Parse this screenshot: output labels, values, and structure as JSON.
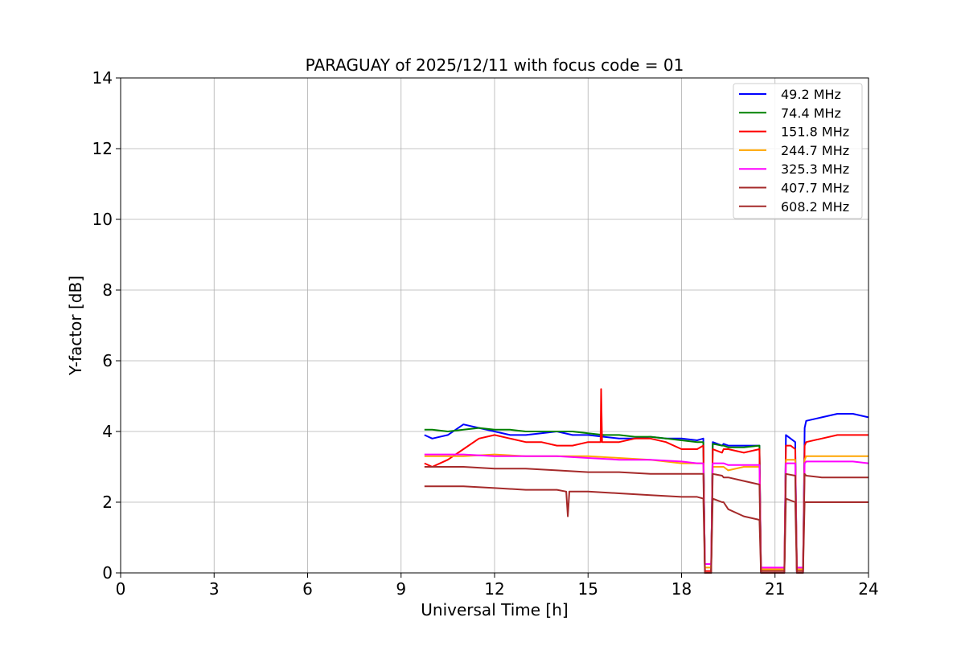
{
  "chart_data": {
    "type": "line",
    "title": "PARAGUAY of 2025/12/11 with focus code = 01",
    "xlabel": "Universal Time [h]",
    "ylabel": "Y-factor [dB]",
    "xlim": [
      0,
      24
    ],
    "ylim": [
      0,
      14
    ],
    "xticks": [
      0,
      3,
      6,
      9,
      12,
      15,
      18,
      21,
      24
    ],
    "yticks": [
      0,
      2,
      4,
      6,
      8,
      10,
      12,
      14
    ],
    "grid": true,
    "legend_position": "top-right",
    "series": [
      {
        "name": " 49.2 MHz",
        "color": "#0000ff",
        "x": [
          9.75,
          10.0,
          10.5,
          11.0,
          11.5,
          12.0,
          12.5,
          13.0,
          13.5,
          14.0,
          14.5,
          15.0,
          15.5,
          16.0,
          16.5,
          17.0,
          17.5,
          18.0,
          18.5,
          18.7,
          18.75,
          18.95,
          19.0,
          19.3,
          19.35,
          19.5,
          20.0,
          20.5,
          20.55,
          21.3,
          21.35,
          21.5,
          21.65,
          21.7,
          21.9,
          21.95,
          22.0,
          22.5,
          23.0,
          23.5,
          24.0
        ],
        "y": [
          3.9,
          3.8,
          3.9,
          4.2,
          4.1,
          4.0,
          3.9,
          3.9,
          3.95,
          4.0,
          3.9,
          3.9,
          3.85,
          3.8,
          3.8,
          3.85,
          3.8,
          3.8,
          3.75,
          3.8,
          0.0,
          0.0,
          3.7,
          3.6,
          3.65,
          3.6,
          3.6,
          3.6,
          0.0,
          0.0,
          3.9,
          3.8,
          3.7,
          0.0,
          0.0,
          4.1,
          4.3,
          4.4,
          4.5,
          4.5,
          4.4
        ]
      },
      {
        "name": " 74.4 MHz",
        "color": "#008000",
        "x": [
          9.75,
          10.0,
          10.5,
          11.0,
          11.5,
          12.0,
          12.5,
          13.0,
          13.5,
          14.0,
          14.5,
          15.0,
          15.5,
          16.0,
          16.5,
          17.0,
          17.5,
          18.0,
          18.5,
          18.7,
          18.75,
          18.95,
          19.0,
          19.3,
          19.35,
          19.5,
          20.0,
          20.5,
          20.55
        ],
        "y": [
          4.05,
          4.05,
          4.0,
          4.05,
          4.1,
          4.05,
          4.05,
          4.0,
          4.0,
          4.0,
          4.0,
          3.95,
          3.9,
          3.9,
          3.85,
          3.85,
          3.8,
          3.75,
          3.7,
          3.7,
          0.0,
          0.0,
          3.65,
          3.6,
          3.6,
          3.55,
          3.55,
          3.6,
          0.0
        ]
      },
      {
        "name": "151.8 MHz",
        "color": "#ff0000",
        "x": [
          9.75,
          10.0,
          10.5,
          11.0,
          11.5,
          12.0,
          12.5,
          13.0,
          13.5,
          14.0,
          14.5,
          15.0,
          15.4,
          15.42,
          15.45,
          16.0,
          16.5,
          17.0,
          17.5,
          18.0,
          18.5,
          18.7,
          18.75,
          18.95,
          19.0,
          19.3,
          19.35,
          19.5,
          20.0,
          20.5,
          20.55,
          21.3,
          21.35,
          21.5,
          21.65,
          21.7,
          21.9,
          21.95,
          22.0,
          22.5,
          23.0,
          23.5,
          24.0
        ],
        "y": [
          3.1,
          3.0,
          3.2,
          3.5,
          3.8,
          3.9,
          3.8,
          3.7,
          3.7,
          3.6,
          3.6,
          3.7,
          3.7,
          5.2,
          3.7,
          3.7,
          3.8,
          3.8,
          3.7,
          3.5,
          3.5,
          3.6,
          0.05,
          0.05,
          3.5,
          3.4,
          3.5,
          3.5,
          3.4,
          3.5,
          0.1,
          0.1,
          3.6,
          3.6,
          3.5,
          0.1,
          0.1,
          3.6,
          3.7,
          3.8,
          3.9,
          3.9,
          3.9
        ]
      },
      {
        "name": "244.7 MHz",
        "color": "#ffa500",
        "x": [
          9.75,
          10.0,
          11.0,
          12.0,
          13.0,
          14.0,
          15.0,
          16.0,
          17.0,
          18.0,
          18.5,
          18.7,
          18.75,
          18.95,
          19.0,
          19.3,
          19.35,
          19.5,
          20.0,
          20.5,
          20.55,
          21.3,
          21.35,
          21.65,
          21.7,
          21.9,
          21.95,
          22.0,
          22.5,
          23.0,
          23.5,
          24.0
        ],
        "y": [
          3.3,
          3.3,
          3.3,
          3.35,
          3.3,
          3.3,
          3.3,
          3.25,
          3.2,
          3.1,
          3.1,
          3.1,
          0.15,
          0.15,
          3.0,
          3.0,
          3.0,
          2.9,
          3.0,
          3.0,
          0.1,
          0.1,
          3.2,
          3.2,
          0.1,
          0.1,
          3.2,
          3.3,
          3.3,
          3.3,
          3.3,
          3.3
        ]
      },
      {
        "name": "325.3 MHz",
        "color": "#ff00ff",
        "x": [
          9.75,
          10.0,
          11.0,
          12.0,
          13.0,
          14.0,
          15.0,
          16.0,
          17.0,
          18.0,
          18.5,
          18.7,
          18.75,
          18.95,
          19.0,
          19.3,
          19.35,
          19.5,
          20.0,
          20.5,
          20.55,
          21.3,
          21.35,
          21.65,
          21.7,
          21.9,
          21.95,
          22.0,
          22.5,
          23.0,
          23.5,
          24.0
        ],
        "y": [
          3.35,
          3.35,
          3.35,
          3.3,
          3.3,
          3.3,
          3.25,
          3.2,
          3.2,
          3.15,
          3.1,
          3.1,
          0.25,
          0.25,
          3.1,
          3.1,
          3.1,
          3.05,
          3.05,
          3.05,
          0.15,
          0.15,
          3.1,
          3.1,
          0.15,
          0.15,
          3.1,
          3.15,
          3.15,
          3.15,
          3.15,
          3.1
        ]
      },
      {
        "name": "407.7 MHz",
        "color": "#a52a2a",
        "x": [
          9.75,
          10.0,
          11.0,
          12.0,
          13.0,
          14.0,
          15.0,
          16.0,
          17.0,
          18.0,
          18.5,
          18.7,
          18.75,
          18.95,
          19.0,
          19.3,
          19.35,
          19.5,
          20.0,
          20.5,
          20.55,
          21.3,
          21.35,
          21.65,
          21.7,
          21.9,
          21.95,
          22.0,
          22.5,
          23.0,
          23.5,
          24.0
        ],
        "y": [
          3.0,
          3.0,
          3.0,
          2.95,
          2.95,
          2.9,
          2.85,
          2.85,
          2.8,
          2.8,
          2.8,
          2.8,
          0.0,
          0.0,
          2.8,
          2.75,
          2.7,
          2.7,
          2.6,
          2.5,
          0.05,
          0.05,
          2.8,
          2.75,
          0.05,
          0.05,
          2.8,
          2.75,
          2.7,
          2.7,
          2.7,
          2.7
        ]
      },
      {
        "name": "608.2 MHz",
        "color": "#a52a2a",
        "x": [
          9.75,
          10.0,
          11.0,
          12.0,
          13.0,
          14.0,
          14.3,
          14.35,
          14.4,
          15.0,
          16.0,
          17.0,
          18.0,
          18.5,
          18.7,
          18.75,
          18.95,
          19.0,
          19.3,
          19.35,
          19.5,
          20.0,
          20.5,
          20.55,
          21.3,
          21.35,
          21.65,
          21.7,
          21.9,
          21.95,
          22.0,
          22.5,
          23.0,
          23.5,
          24.0
        ],
        "y": [
          2.45,
          2.45,
          2.45,
          2.4,
          2.35,
          2.35,
          2.3,
          1.6,
          2.3,
          2.3,
          2.25,
          2.2,
          2.15,
          2.15,
          2.1,
          0.0,
          0.0,
          2.1,
          2.0,
          2.0,
          1.8,
          1.6,
          1.5,
          0.0,
          0.0,
          2.1,
          2.0,
          0.0,
          0.0,
          2.0,
          2.0,
          2.0,
          2.0,
          2.0,
          2.0
        ]
      }
    ]
  }
}
